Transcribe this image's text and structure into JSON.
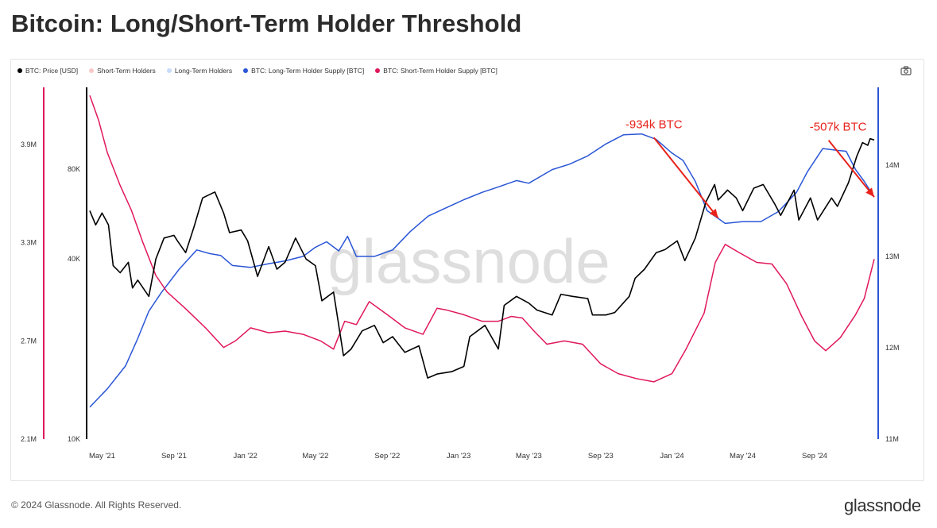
{
  "page": {
    "title": "Bitcoin: Long/Short-Term Holder Threshold",
    "footer_copyright": "© 2024 Glassnode. All Rights Reserved.",
    "footer_logo": "glassnode",
    "watermark": "glassnode"
  },
  "icons": {
    "camera": "camera-icon"
  },
  "chart_data": {
    "type": "line",
    "title": "Bitcoin: Long/Short-Term Holder Threshold",
    "x_ticks": [
      "May '21",
      "Sep '21",
      "Jan '22",
      "May '22",
      "Sep '22",
      "Jan '23",
      "May '23",
      "Sep '23",
      "Jan '24",
      "May '24",
      "Sep '24"
    ],
    "x_range": [
      "2021-04-10",
      "2024-12-12"
    ],
    "legend_placement": "top-left",
    "grid": false,
    "legend": [
      {
        "name": "BTC: Price [USD]",
        "color": "#000000"
      },
      {
        "name": "Short-Term Holders",
        "color": "#f9c9c9"
      },
      {
        "name": "Long-Term Holders",
        "color": "#c6dcfa"
      },
      {
        "name": "BTC: Long-Term Holder Supply [BTC]",
        "color": "#2a56d6"
      },
      {
        "name": "BTC: Short-Term Holder Supply [BTC]",
        "color": "#e0185a"
      }
    ],
    "axes": {
      "left_outer": {
        "scale": "linear",
        "ticks": [
          "2.1M",
          "2.7M",
          "3.3M",
          "3.9M"
        ],
        "range": [
          2100000,
          4250000
        ],
        "color": "#e0185a",
        "series": "BTC: Short-Term Holder Supply [BTC]"
      },
      "left_inner": {
        "scale": "log",
        "ticks": [
          "10K",
          "40K",
          "80K"
        ],
        "range": [
          10000,
          150000
        ],
        "series": "BTC: Price [USD]"
      },
      "right": {
        "scale": "linear",
        "ticks": [
          "11M",
          "12M",
          "13M",
          "14M"
        ],
        "range": [
          11000000,
          14850000
        ],
        "color": "#2a56d6",
        "series": "BTC: Long-Term Holder Supply [BTC]"
      }
    },
    "regions": [
      {
        "name": "Long-Term Holders",
        "from": "2021-04-10",
        "to": "2024-06-15",
        "color": "#c6dcfa"
      },
      {
        "name": "Short-Term Holders",
        "from": "2024-06-15",
        "to": "2024-12-12",
        "color": "#f9c9c9"
      }
    ],
    "annotations": [
      {
        "text": "-934k BTC",
        "color": "#e8221b",
        "arrow_from": [
          "2023-12-01",
          14300000
        ],
        "arrow_to": [
          "2024-03-20",
          13420000
        ]
      },
      {
        "text": "-507k BTC",
        "color": "#e8221b",
        "arrow_from": [
          "2024-09-25",
          14270000
        ],
        "arrow_to": [
          "2024-12-12",
          13650000
        ]
      }
    ],
    "series": [
      {
        "name": "BTC: Price [USD]",
        "axis": "left_inner",
        "color": "#000000",
        "points": [
          [
            "2021-04-10",
            58000
          ],
          [
            "2021-04-20",
            52000
          ],
          [
            "2021-05-01",
            57000
          ],
          [
            "2021-05-12",
            52000
          ],
          [
            "2021-05-20",
            38000
          ],
          [
            "2021-06-01",
            36000
          ],
          [
            "2021-06-15",
            39000
          ],
          [
            "2021-06-22",
            32000
          ],
          [
            "2021-07-01",
            34000
          ],
          [
            "2021-07-20",
            30000
          ],
          [
            "2021-08-01",
            40000
          ],
          [
            "2021-08-15",
            47000
          ],
          [
            "2021-09-01",
            48000
          ],
          [
            "2021-09-07",
            46000
          ],
          [
            "2021-09-21",
            42000
          ],
          [
            "2021-10-05",
            51000
          ],
          [
            "2021-10-20",
            64000
          ],
          [
            "2021-11-10",
            67000
          ],
          [
            "2021-11-25",
            57000
          ],
          [
            "2021-12-05",
            49000
          ],
          [
            "2021-12-25",
            50000
          ],
          [
            "2022-01-05",
            46000
          ],
          [
            "2022-01-22",
            35000
          ],
          [
            "2022-02-10",
            44000
          ],
          [
            "2022-02-24",
            37000
          ],
          [
            "2022-03-10",
            39000
          ],
          [
            "2022-03-28",
            47000
          ],
          [
            "2022-04-15",
            40000
          ],
          [
            "2022-05-01",
            38000
          ],
          [
            "2022-05-12",
            29000
          ],
          [
            "2022-06-01",
            31000
          ],
          [
            "2022-06-18",
            19000
          ],
          [
            "2022-07-01",
            20000
          ],
          [
            "2022-07-20",
            23000
          ],
          [
            "2022-08-10",
            24000
          ],
          [
            "2022-08-25",
            21000
          ],
          [
            "2022-09-10",
            22000
          ],
          [
            "2022-10-01",
            19500
          ],
          [
            "2022-10-25",
            20500
          ],
          [
            "2022-11-09",
            16000
          ],
          [
            "2022-11-25",
            16500
          ],
          [
            "2022-12-20",
            16800
          ],
          [
            "2023-01-10",
            17500
          ],
          [
            "2023-01-20",
            22000
          ],
          [
            "2023-02-15",
            24000
          ],
          [
            "2023-03-10",
            20000
          ],
          [
            "2023-03-20",
            28000
          ],
          [
            "2023-04-10",
            30000
          ],
          [
            "2023-05-01",
            28500
          ],
          [
            "2023-05-15",
            27000
          ],
          [
            "2023-06-10",
            26000
          ],
          [
            "2023-06-25",
            30500
          ],
          [
            "2023-07-15",
            30000
          ],
          [
            "2023-08-10",
            29500
          ],
          [
            "2023-08-18",
            26000
          ],
          [
            "2023-09-10",
            26000
          ],
          [
            "2023-09-25",
            26500
          ],
          [
            "2023-10-20",
            30000
          ],
          [
            "2023-10-30",
            34500
          ],
          [
            "2023-11-15",
            37000
          ],
          [
            "2023-12-05",
            42000
          ],
          [
            "2023-12-20",
            43000
          ],
          [
            "2024-01-10",
            46000
          ],
          [
            "2024-01-23",
            39500
          ],
          [
            "2024-02-10",
            47000
          ],
          [
            "2024-02-28",
            62000
          ],
          [
            "2024-03-14",
            71000
          ],
          [
            "2024-03-20",
            63000
          ],
          [
            "2024-04-05",
            68000
          ],
          [
            "2024-04-20",
            64000
          ],
          [
            "2024-05-01",
            58000
          ],
          [
            "2024-05-20",
            69000
          ],
          [
            "2024-06-05",
            71000
          ],
          [
            "2024-06-25",
            61000
          ],
          [
            "2024-07-05",
            56000
          ],
          [
            "2024-07-28",
            68000
          ],
          [
            "2024-08-05",
            54000
          ],
          [
            "2024-08-25",
            64000
          ],
          [
            "2024-09-06",
            54000
          ],
          [
            "2024-09-30",
            64000
          ],
          [
            "2024-10-10",
            60000
          ],
          [
            "2024-10-29",
            72000
          ],
          [
            "2024-11-12",
            88000
          ],
          [
            "2024-11-22",
            98000
          ],
          [
            "2024-12-01",
            96000
          ],
          [
            "2024-12-05",
            101000
          ],
          [
            "2024-12-12",
            100000
          ]
        ]
      },
      {
        "name": "BTC: Long-Term Holder Supply [BTC]",
        "axis": "right",
        "color": "#2a56d6",
        "points": [
          [
            "2021-04-10",
            11350000
          ],
          [
            "2021-05-10",
            11550000
          ],
          [
            "2021-06-10",
            11800000
          ],
          [
            "2021-07-01",
            12100000
          ],
          [
            "2021-07-20",
            12400000
          ],
          [
            "2021-08-10",
            12600000
          ],
          [
            "2021-09-10",
            12860000
          ],
          [
            "2021-10-10",
            13070000
          ],
          [
            "2021-11-01",
            13030000
          ],
          [
            "2021-11-20",
            13010000
          ],
          [
            "2021-12-10",
            12900000
          ],
          [
            "2022-01-10",
            12880000
          ],
          [
            "2022-02-10",
            12920000
          ],
          [
            "2022-03-10",
            12950000
          ],
          [
            "2022-04-10",
            13000000
          ],
          [
            "2022-05-01",
            13100000
          ],
          [
            "2022-05-20",
            13160000
          ],
          [
            "2022-06-10",
            13060000
          ],
          [
            "2022-06-25",
            13220000
          ],
          [
            "2022-07-10",
            13000000
          ],
          [
            "2022-08-10",
            13000000
          ],
          [
            "2022-09-10",
            13070000
          ],
          [
            "2022-10-10",
            13270000
          ],
          [
            "2022-11-10",
            13440000
          ],
          [
            "2022-12-10",
            13530000
          ],
          [
            "2023-01-10",
            13620000
          ],
          [
            "2023-02-10",
            13700000
          ],
          [
            "2023-03-10",
            13760000
          ],
          [
            "2023-04-10",
            13830000
          ],
          [
            "2023-05-01",
            13800000
          ],
          [
            "2023-06-10",
            13950000
          ],
          [
            "2023-07-10",
            14010000
          ],
          [
            "2023-08-10",
            14100000
          ],
          [
            "2023-09-10",
            14230000
          ],
          [
            "2023-10-10",
            14330000
          ],
          [
            "2023-11-10",
            14340000
          ],
          [
            "2023-12-05",
            14280000
          ],
          [
            "2024-01-01",
            14130000
          ],
          [
            "2024-01-20",
            14050000
          ],
          [
            "2024-02-10",
            13820000
          ],
          [
            "2024-03-01",
            13500000
          ],
          [
            "2024-04-01",
            13360000
          ],
          [
            "2024-05-01",
            13380000
          ],
          [
            "2024-06-01",
            13380000
          ],
          [
            "2024-07-01",
            13490000
          ],
          [
            "2024-08-01",
            13700000
          ],
          [
            "2024-08-20",
            13930000
          ],
          [
            "2024-09-15",
            14180000
          ],
          [
            "2024-10-10",
            14160000
          ],
          [
            "2024-10-25",
            14150000
          ],
          [
            "2024-11-10",
            13950000
          ],
          [
            "2024-11-25",
            13820000
          ],
          [
            "2024-12-12",
            13650000
          ]
        ]
      },
      {
        "name": "BTC: Short-Term Holder Supply [BTC]",
        "axis": "left_outer",
        "color": "#e0185a",
        "points": [
          [
            "2021-04-10",
            4200000
          ],
          [
            "2021-04-25",
            4050000
          ],
          [
            "2021-05-10",
            3850000
          ],
          [
            "2021-06-01",
            3650000
          ],
          [
            "2021-06-20",
            3500000
          ],
          [
            "2021-07-10",
            3300000
          ],
          [
            "2021-08-01",
            3100000
          ],
          [
            "2021-08-20",
            3000000
          ],
          [
            "2021-09-20",
            2900000
          ],
          [
            "2021-10-25",
            2780000
          ],
          [
            "2021-11-25",
            2660000
          ],
          [
            "2021-12-15",
            2700000
          ],
          [
            "2022-01-10",
            2780000
          ],
          [
            "2022-02-10",
            2750000
          ],
          [
            "2022-03-10",
            2760000
          ],
          [
            "2022-04-10",
            2740000
          ],
          [
            "2022-05-10",
            2700000
          ],
          [
            "2022-06-01",
            2650000
          ],
          [
            "2022-06-20",
            2820000
          ],
          [
            "2022-07-10",
            2800000
          ],
          [
            "2022-08-01",
            2940000
          ],
          [
            "2022-09-01",
            2860000
          ],
          [
            "2022-10-01",
            2780000
          ],
          [
            "2022-11-01",
            2740000
          ],
          [
            "2022-11-25",
            2900000
          ],
          [
            "2022-12-10",
            2890000
          ],
          [
            "2023-01-10",
            2860000
          ],
          [
            "2023-02-10",
            2820000
          ],
          [
            "2023-03-10",
            2820000
          ],
          [
            "2023-04-01",
            2850000
          ],
          [
            "2023-04-20",
            2840000
          ],
          [
            "2023-05-10",
            2760000
          ],
          [
            "2023-06-01",
            2680000
          ],
          [
            "2023-07-01",
            2700000
          ],
          [
            "2023-08-01",
            2680000
          ],
          [
            "2023-09-01",
            2560000
          ],
          [
            "2023-10-01",
            2500000
          ],
          [
            "2023-11-01",
            2470000
          ],
          [
            "2023-12-01",
            2450000
          ],
          [
            "2024-01-01",
            2500000
          ],
          [
            "2024-01-25",
            2650000
          ],
          [
            "2024-02-25",
            2870000
          ],
          [
            "2024-03-15",
            3180000
          ],
          [
            "2024-04-01",
            3290000
          ],
          [
            "2024-04-25",
            3240000
          ],
          [
            "2024-05-25",
            3180000
          ],
          [
            "2024-06-20",
            3170000
          ],
          [
            "2024-07-15",
            3050000
          ],
          [
            "2024-08-10",
            2850000
          ],
          [
            "2024-09-01",
            2700000
          ],
          [
            "2024-09-20",
            2640000
          ],
          [
            "2024-10-15",
            2720000
          ],
          [
            "2024-11-10",
            2860000
          ],
          [
            "2024-11-25",
            2960000
          ],
          [
            "2024-12-12",
            3200000
          ]
        ]
      }
    ]
  }
}
